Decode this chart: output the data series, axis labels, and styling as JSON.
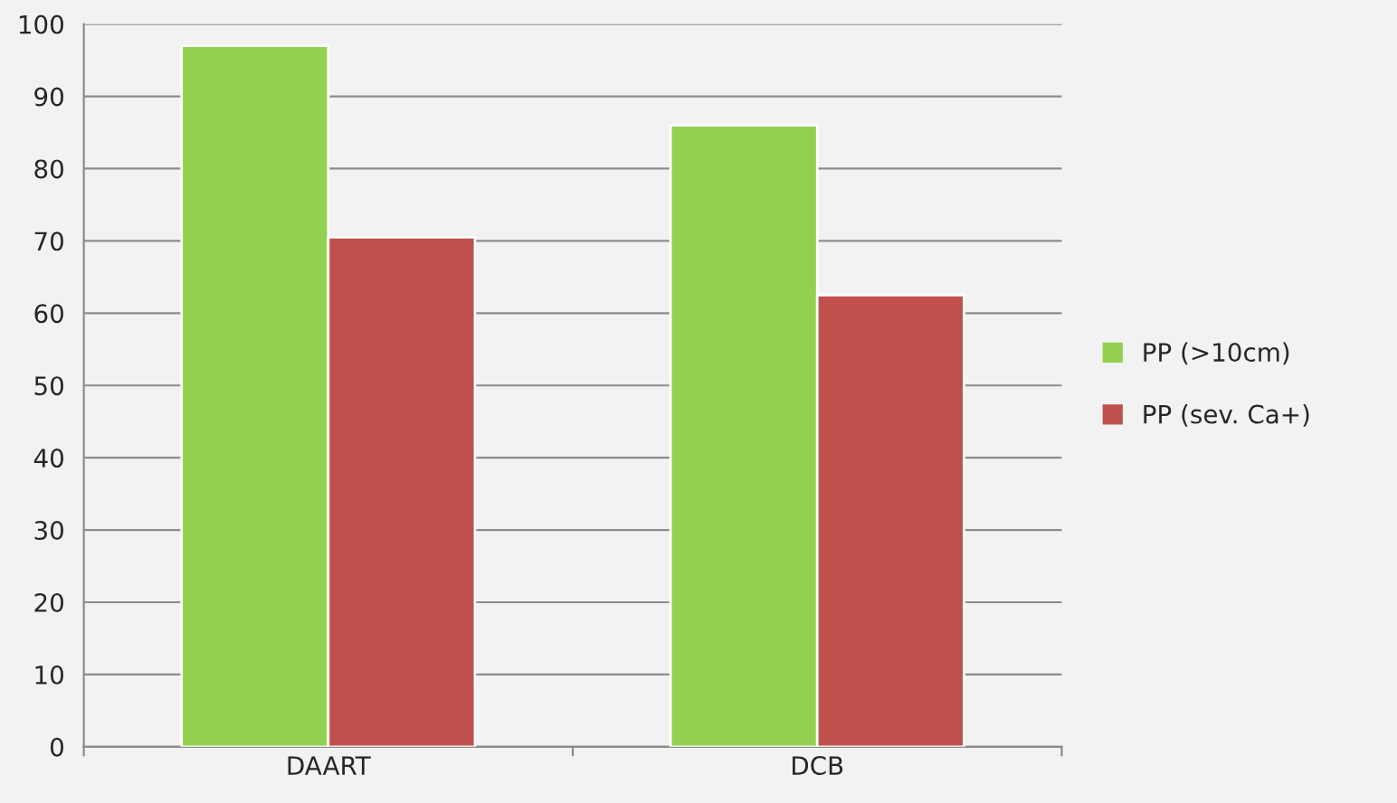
{
  "chart_data": {
    "type": "bar",
    "categories": [
      "DAART",
      "DCB"
    ],
    "series": [
      {
        "name": "PP (>10cm)",
        "color": "#92d050",
        "values": [
          97,
          86
        ]
      },
      {
        "name": "PP (sev. Ca+)",
        "color": "#c0504d",
        "values": [
          70.5,
          62.5
        ]
      }
    ],
    "ylim": [
      0,
      100
    ],
    "yticks": [
      0,
      10,
      20,
      30,
      40,
      50,
      60,
      70,
      80,
      90,
      100
    ],
    "grid": "y",
    "legend": "right"
  }
}
